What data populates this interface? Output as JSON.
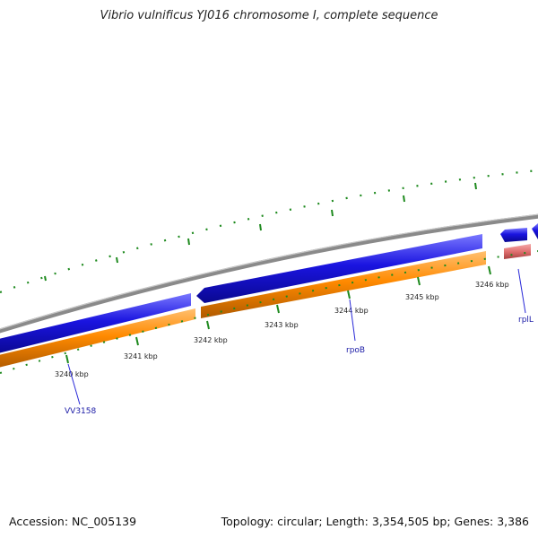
{
  "title": "Vibrio vulnificus YJ016 chromosome I, complete sequence",
  "footer": {
    "accession": "Accession: NC_005139",
    "summary": "Topology: circular; Length: 3,354,505 bp; Genes: 3,386"
  },
  "kbp_ticks": [
    {
      "label": "3240 kbp"
    },
    {
      "label": "3241 kbp"
    },
    {
      "label": "3242 kbp"
    },
    {
      "label": "3243 kbp"
    },
    {
      "label": "3244 kbp"
    },
    {
      "label": "3245 kbp"
    },
    {
      "label": "3246 kbp"
    }
  ],
  "gene_labels": [
    {
      "name": "VV3158"
    },
    {
      "name": "rpoB"
    },
    {
      "name": "rplL"
    }
  ],
  "colors": {
    "backbone": "#8a8a8a",
    "cds_reverse": "#1a14e0",
    "cds_forward": "#ff8a00",
    "rna": "#e07070",
    "tick": "#1e8a1e",
    "label_line": "#2a2ad8"
  }
}
